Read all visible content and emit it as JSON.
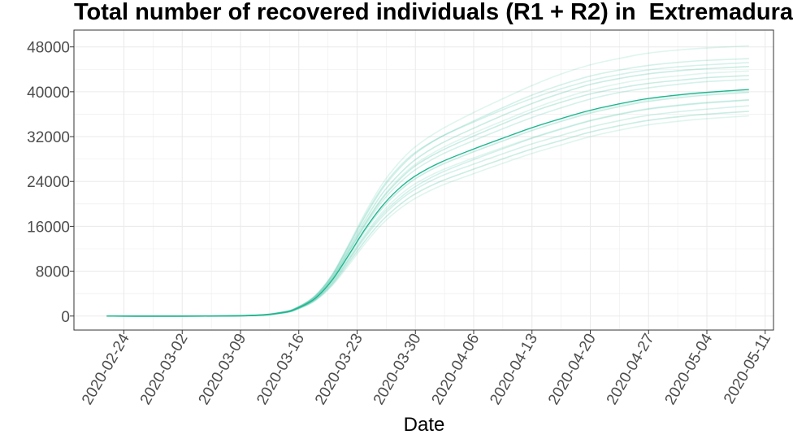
{
  "chart_data": {
    "type": "line",
    "title": "Total number of recovered individuals (R1 + R2) in  Extremadura",
    "xlabel": "Date",
    "ylabel": "",
    "x_start": "2020-02-22",
    "x_end": "2020-05-09",
    "xlim": [
      "2020-02-18",
      "2020-05-12"
    ],
    "ylim": [
      -2500,
      51000
    ],
    "xticks": [
      "2020-02-24",
      "2020-03-02",
      "2020-03-09",
      "2020-03-16",
      "2020-03-23",
      "2020-03-30",
      "2020-04-06",
      "2020-04-13",
      "2020-04-20",
      "2020-04-27",
      "2020-05-04",
      "2020-05-11"
    ],
    "yticks": [
      0,
      8000,
      16000,
      24000,
      32000,
      40000,
      48000
    ],
    "ytick_labels": [
      "0",
      "8000",
      "16000",
      "24000",
      "32000",
      "40000",
      "48000"
    ],
    "grid": true,
    "legend": "none",
    "colors": {
      "line": "#1db58f",
      "frame": "#333333",
      "grid": "#ebebeb"
    },
    "x": [
      "2020-02-22",
      "2020-03-09",
      "2020-03-14",
      "2020-03-16",
      "2020-03-18",
      "2020-03-20",
      "2020-03-22",
      "2020-03-24",
      "2020-03-26",
      "2020-03-28",
      "2020-03-30",
      "2020-04-02",
      "2020-04-06",
      "2020-04-10",
      "2020-04-13",
      "2020-04-16",
      "2020-04-20",
      "2020-04-24",
      "2020-04-27",
      "2020-05-01",
      "2020-05-04",
      "2020-05-09"
    ],
    "series": [
      {
        "role": "median",
        "values": [
          0,
          50,
          600,
          1500,
          3200,
          6400,
          10900,
          15600,
          19600,
          22700,
          25000,
          27400,
          29800,
          32000,
          33600,
          35000,
          36700,
          38000,
          38800,
          39500,
          39900,
          40400
        ]
      },
      {
        "role": "simulation",
        "values": [
          0,
          60,
          700,
          1700,
          3700,
          7400,
          12800,
          18500,
          23500,
          27300,
          30200,
          33200,
          36300,
          39100,
          41100,
          42900,
          44800,
          46100,
          46900,
          47500,
          47800,
          48200
        ]
      },
      {
        "role": "simulation",
        "values": [
          0,
          60,
          680,
          1650,
          3600,
          7200,
          12400,
          17800,
          22600,
          26200,
          29000,
          31900,
          34800,
          37500,
          39400,
          41000,
          42800,
          44000,
          44700,
          45300,
          45600,
          45900
        ]
      },
      {
        "role": "simulation",
        "values": [
          0,
          55,
          660,
          1600,
          3500,
          7000,
          12000,
          17200,
          21800,
          25200,
          27900,
          30700,
          33500,
          36100,
          37900,
          39500,
          41300,
          42500,
          43200,
          43800,
          44100,
          44500
        ]
      },
      {
        "role": "simulation",
        "values": [
          0,
          55,
          650,
          1580,
          3400,
          6800,
          11700,
          16700,
          21100,
          24500,
          27100,
          29800,
          32600,
          35100,
          36900,
          38500,
          40300,
          41600,
          42300,
          42900,
          43300,
          43700
        ]
      },
      {
        "role": "simulation",
        "values": [
          0,
          50,
          620,
          1550,
          3300,
          6600,
          11300,
          16200,
          20400,
          23600,
          26100,
          28700,
          31300,
          33700,
          35400,
          36900,
          38700,
          40000,
          40700,
          41400,
          41800,
          42200
        ]
      },
      {
        "role": "simulation",
        "values": [
          0,
          50,
          590,
          1480,
          3150,
          6300,
          10700,
          15300,
          19200,
          22200,
          24500,
          26900,
          29300,
          31500,
          33100,
          34500,
          36200,
          37500,
          38300,
          39000,
          39400,
          39900
        ]
      },
      {
        "role": "simulation",
        "values": [
          0,
          45,
          570,
          1450,
          3050,
          6100,
          10300,
          14700,
          18500,
          21400,
          23600,
          25900,
          28200,
          30300,
          31800,
          33200,
          34900,
          36200,
          37000,
          37700,
          38100,
          38600
        ]
      },
      {
        "role": "simulation",
        "values": [
          0,
          45,
          550,
          1400,
          2950,
          5800,
          9900,
          14100,
          17700,
          20500,
          22600,
          24900,
          27100,
          29200,
          30700,
          32000,
          33700,
          35000,
          35800,
          36500,
          36900,
          37500
        ]
      },
      {
        "role": "simulation",
        "values": [
          0,
          40,
          530,
          1350,
          2850,
          5600,
          9500,
          13500,
          17000,
          19700,
          21800,
          24000,
          26200,
          28300,
          29800,
          31100,
          32800,
          34100,
          34900,
          35600,
          36000,
          36500
        ]
      },
      {
        "role": "simulation",
        "values": [
          0,
          40,
          510,
          1300,
          2750,
          5400,
          9100,
          13000,
          16400,
          19000,
          21000,
          23200,
          25400,
          27500,
          29000,
          30300,
          32000,
          33300,
          34100,
          34800,
          35200,
          35700
        ]
      },
      {
        "role": "simulation",
        "values": [
          0,
          60,
          690,
          1680,
          3650,
          7300,
          12600,
          18100,
          22900,
          26500,
          29200,
          31900,
          34600,
          37100,
          38800,
          40300,
          42000,
          43200,
          43900,
          44500,
          44800,
          45200
        ]
      },
      {
        "role": "simulation",
        "values": [
          0,
          52,
          630,
          1560,
          3350,
          6700,
          11500,
          16500,
          20900,
          24200,
          26800,
          29400,
          32100,
          34600,
          36400,
          37900,
          39600,
          40800,
          41500,
          42100,
          42500,
          42900
        ]
      },
      {
        "role": "simulation",
        "values": [
          0,
          48,
          600,
          1500,
          3200,
          6400,
          10900,
          15600,
          19600,
          22600,
          24900,
          27300,
          29700,
          31900,
          33500,
          34900,
          36500,
          37800,
          38600,
          39300,
          39700,
          40200
        ]
      },
      {
        "role": "simulation",
        "values": [
          0,
          44,
          560,
          1420,
          3000,
          5950,
          10100,
          14400,
          18100,
          20900,
          23100,
          25500,
          27900,
          30100,
          31700,
          33100,
          34800,
          36100,
          36900,
          37600,
          38000,
          38500
        ]
      }
    ]
  }
}
